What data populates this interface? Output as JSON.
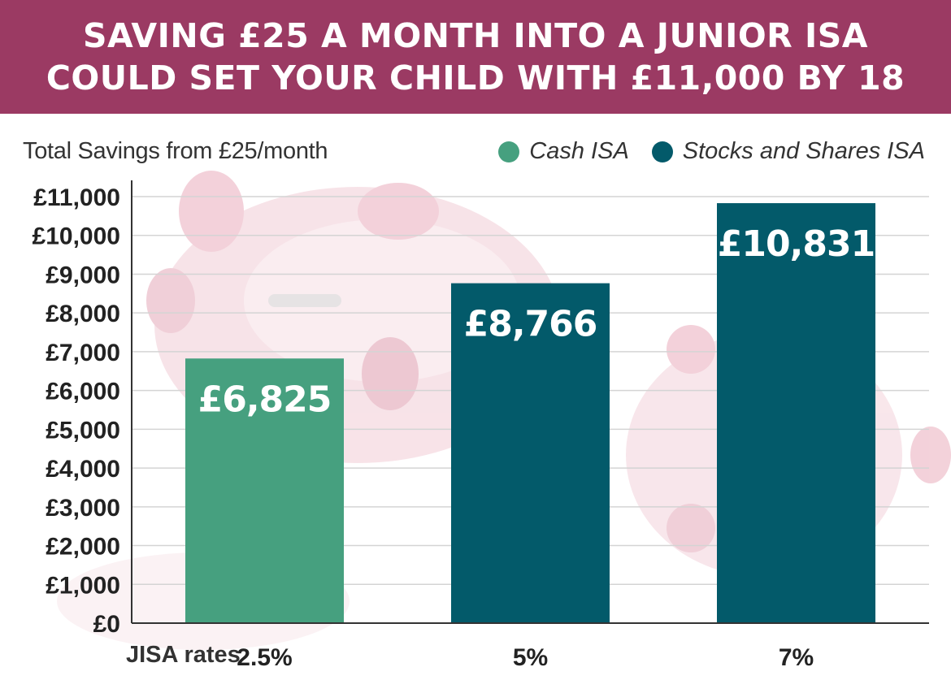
{
  "header": {
    "title_line1": "SAVING £25 A MONTH INTO A JUNIOR ISA",
    "title_line2": "COULD SET YOUR CHILD WITH £11,000 BY 18"
  },
  "colors": {
    "banner": "#9b3a63",
    "cash_isa": "#46a07f",
    "stocks_isa": "#035a6a",
    "grid": "#d4d4d4",
    "axis_text": "#222222"
  },
  "chart_data": {
    "type": "bar",
    "title": "Total Savings from £25/month",
    "xlabel": "JISA rates",
    "ylabel": "",
    "categories": [
      "2.5%",
      "5%",
      "7%"
    ],
    "values": [
      6825,
      8766,
      10831
    ],
    "value_labels": [
      "£6,825",
      "£8,766",
      "£10,831"
    ],
    "bar_series": [
      "Cash ISA",
      "Stocks and Shares ISA",
      "Stocks and Shares ISA"
    ],
    "series": [
      {
        "name": "Cash ISA",
        "color": "#46a07f"
      },
      {
        "name": "Stocks and Shares ISA",
        "color": "#035a6a"
      }
    ],
    "ylim": [
      0,
      11000
    ],
    "yticks": [
      0,
      1000,
      2000,
      3000,
      4000,
      5000,
      6000,
      7000,
      8000,
      9000,
      10000,
      11000
    ],
    "ytick_labels": [
      "£0",
      "£1,000",
      "£2,000",
      "£3,000",
      "£4,000",
      "£5,000",
      "£6,000",
      "£7,000",
      "£8,000",
      "£9,000",
      "£10,000",
      "£11,000"
    ],
    "grid": true,
    "legend": "top-right"
  }
}
